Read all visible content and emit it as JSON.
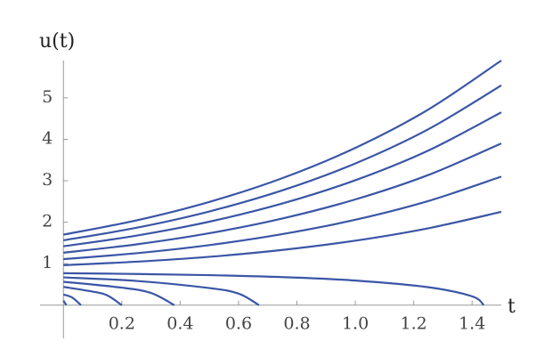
{
  "chart_data": {
    "type": "line",
    "y_label": "u(t)",
    "x_label": "t",
    "xlim": [
      -0.08,
      1.5
    ],
    "ylim": [
      -0.8,
      5.9
    ],
    "xticks": [
      0.2,
      0.4,
      0.6,
      0.8,
      {
        "value": 1.0,
        "label": "1.0"
      },
      1.2,
      1.4
    ],
    "yticks": [
      1,
      2,
      3,
      4,
      5
    ],
    "color": "#3a56a6",
    "series": [
      {
        "x": [
          0,
          0.25,
          0.5,
          0.75,
          1.0,
          1.25,
          1.5
        ],
        "values": [
          1.7,
          2.044,
          2.49,
          3.063,
          3.793,
          4.718,
          5.9
        ]
      },
      {
        "x": [
          0,
          0.25,
          0.5,
          0.75,
          1.0,
          1.25,
          1.5
        ],
        "values": [
          1.564,
          1.866,
          2.26,
          2.768,
          3.418,
          4.243,
          5.3
        ]
      },
      {
        "x": [
          0,
          0.25,
          0.5,
          0.75,
          1.0,
          1.25,
          1.5
        ],
        "values": [
          1.42,
          1.677,
          2.013,
          2.451,
          3.013,
          3.729,
          4.65
        ]
      },
      {
        "x": [
          0,
          0.25,
          0.5,
          0.75,
          1.0,
          1.25,
          1.5
        ],
        "values": [
          1.265,
          1.466,
          1.735,
          2.09,
          2.55,
          3.139,
          3.9
        ]
      },
      {
        "x": [
          0,
          0.25,
          0.5,
          0.75,
          1.0,
          1.25,
          1.5
        ],
        "values": [
          1.109,
          1.252,
          1.448,
          1.713,
          2.06,
          2.512,
          3.1
        ]
      },
      {
        "x": [
          0,
          0.25,
          0.5,
          0.75,
          1.0,
          1.25,
          1.5
        ],
        "values": [
          0.965,
          1.048,
          1.166,
          1.331,
          1.555,
          1.854,
          2.25
        ]
      },
      {
        "x": [
          0,
          0.25,
          0.5,
          0.75,
          1.0,
          1.25,
          1.4,
          1.44
        ],
        "values": [
          0.77,
          0.752,
          0.723,
          0.676,
          0.593,
          0.432,
          0.212,
          0
        ]
      },
      {
        "x": [
          0,
          0.25,
          0.5,
          0.6,
          0.67
        ],
        "values": [
          0.67,
          0.584,
          0.412,
          0.278,
          0
        ]
      },
      {
        "x": [
          0,
          0.2,
          0.3,
          0.38
        ],
        "values": [
          0.564,
          0.422,
          0.293,
          0
        ]
      },
      {
        "x": [
          0,
          0.1,
          0.15,
          0.2
        ],
        "values": [
          0.44,
          0.327,
          0.237,
          0
        ]
      },
      {
        "x": [
          0,
          0.03,
          0.06
        ],
        "values": [
          0.257,
          0.184,
          0
        ]
      },
      {
        "x": [
          0,
          0.01
        ],
        "values": [
          0.11,
          0
        ]
      }
    ]
  }
}
